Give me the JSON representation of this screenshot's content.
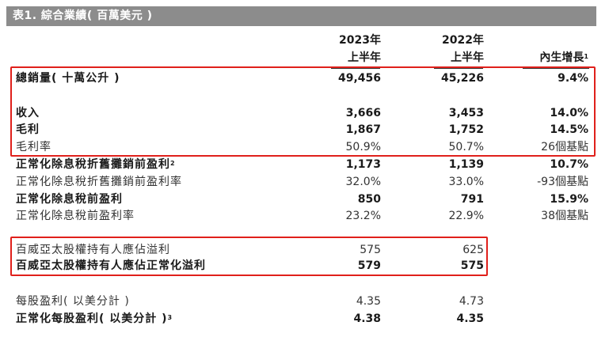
{
  "table_title": "表1. 綜合業績( 百萬美元 )",
  "header": {
    "col1": {
      "line1": "2023年",
      "line2": "上半年"
    },
    "col2": {
      "line1": "2022年",
      "line2": "上半年"
    },
    "col3": {
      "text": "內生增長",
      "note": "1"
    }
  },
  "rows": [
    {
      "label": "總銷量( 十萬公升 )",
      "note": "",
      "v2023": "49,456",
      "v2022": "45,226",
      "growth": "9.4%",
      "bold": true
    },
    {
      "label": "收入",
      "note": "",
      "v2023": "3,666",
      "v2022": "3,453",
      "growth": "14.0%",
      "bold": true
    },
    {
      "label": "毛利",
      "note": "",
      "v2023": "1,867",
      "v2022": "1,752",
      "growth": "14.5%",
      "bold": true
    },
    {
      "label": "毛利率",
      "note": "",
      "v2023": "50.9%",
      "v2022": "50.7%",
      "growth": "26個基點",
      "bold": false
    },
    {
      "label": "正常化除息稅折舊攤銷前盈利",
      "note": "2",
      "v2023": "1,173",
      "v2022": "1,139",
      "growth": "10.7%",
      "bold": true
    },
    {
      "label": "正常化除息稅折舊攤銷前盈利率",
      "note": "",
      "v2023": "32.0%",
      "v2022": "33.0%",
      "growth": "-93個基點",
      "bold": false
    },
    {
      "label": "正常化除息稅前盈利",
      "note": "",
      "v2023": "850",
      "v2022": "791",
      "growth": "15.9%",
      "bold": true
    },
    {
      "label": "正常化除息稅前盈利率",
      "note": "",
      "v2023": "23.2%",
      "v2022": "22.9%",
      "growth": "38個基點",
      "bold": false
    },
    {
      "label": "百威亞太股權持有人應佔溢利",
      "note": "",
      "v2023": "575",
      "v2022": "625",
      "growth": "",
      "bold": false
    },
    {
      "label": "百威亞太股權持有人應佔正常化溢利",
      "note": "",
      "v2023": "579",
      "v2022": "575",
      "growth": "",
      "bold": true
    },
    {
      "label": "每股盈利( 以美分計 )",
      "note": "",
      "v2023": "4.35",
      "v2022": "4.73",
      "growth": "",
      "bold": false
    },
    {
      "label": "正常化每股盈利( 以美分計 )",
      "note": "3",
      "v2023": "4.38",
      "v2022": "4.35",
      "growth": "",
      "bold": true
    }
  ],
  "colors": {
    "title_bg": "#8c8c8c",
    "highlight": "#e0201b"
  }
}
